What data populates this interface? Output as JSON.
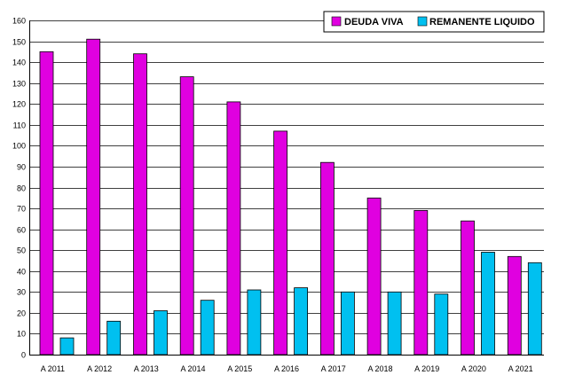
{
  "chart_data": {
    "type": "bar",
    "title": "",
    "xlabel": "",
    "ylabel": "",
    "ylim": [
      0,
      160
    ],
    "yticks": [
      0,
      10,
      20,
      30,
      40,
      50,
      60,
      70,
      80,
      90,
      100,
      110,
      120,
      130,
      140,
      150,
      160
    ],
    "grid": true,
    "legend_position": "top-right",
    "categories": [
      "A 2011",
      "A 2012",
      "A 2013",
      "A 2014",
      "A 2015",
      "A 2016",
      "A 2017",
      "A 2018",
      "A 2019",
      "A 2020",
      "A 2021"
    ],
    "series": [
      {
        "name": "DEUDA VIVA",
        "color": "#e000e0",
        "values": [
          145,
          151,
          144,
          133,
          121,
          107,
          92,
          75,
          69,
          64,
          47
        ]
      },
      {
        "name": "REMANENTE LIQUIDO",
        "color": "#00c0f0",
        "values": [
          8,
          16,
          21,
          26,
          31,
          32,
          30,
          30,
          29,
          49,
          44
        ]
      }
    ]
  }
}
